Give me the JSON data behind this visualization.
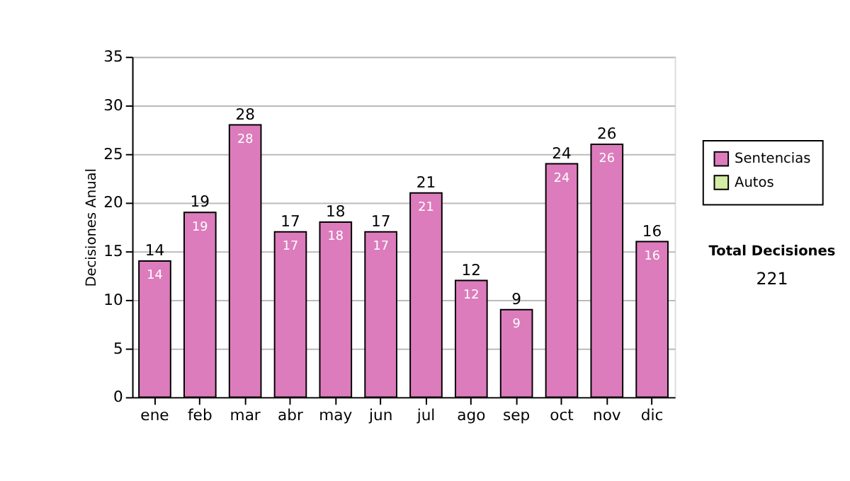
{
  "chart_data": {
    "type": "bar",
    "ylabel": "Decisiones Anual",
    "categories": [
      "ene",
      "feb",
      "mar",
      "abr",
      "may",
      "jun",
      "jul",
      "ago",
      "sep",
      "oct",
      "nov",
      "dic"
    ],
    "stacked": true,
    "series": [
      {
        "name": "Sentencias",
        "color": "#dc7cbc",
        "values": [
          14,
          19,
          28,
          17,
          18,
          17,
          21,
          12,
          9,
          24,
          26,
          16
        ],
        "value_labels": [
          "14",
          "19",
          "28",
          "17",
          "18",
          "17",
          "21",
          "12",
          "9",
          "24",
          "26",
          "16"
        ]
      },
      {
        "name": "Autos",
        "color": "#d4eca4",
        "values": [
          0,
          0,
          0,
          0,
          0,
          0,
          0,
          0,
          0,
          0,
          0,
          0
        ]
      }
    ],
    "totals": [
      "14",
      "19",
      "28",
      "17",
      "18",
      "17",
      "21",
      "12",
      "9",
      "24",
      "26",
      "16"
    ],
    "ylim": [
      0,
      35
    ],
    "yticks": [
      0,
      5,
      10,
      15,
      20,
      25,
      30,
      35
    ],
    "grid": "y",
    "legend": "right",
    "annotations": [
      "Total Decisiones",
      "221"
    ]
  }
}
